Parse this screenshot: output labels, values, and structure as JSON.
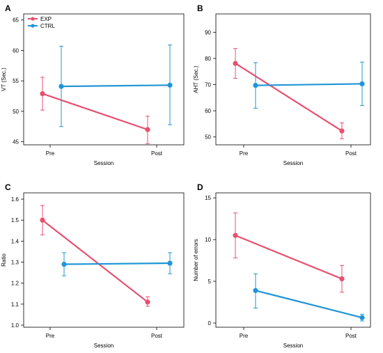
{
  "chart_data": [
    {
      "type": "line",
      "panel_label": "A",
      "categories": [
        "Pre",
        "Post"
      ],
      "xlabel": "Session",
      "ylabel": "VT (Sec.)",
      "ylim": [
        44.5,
        66
      ],
      "yticks": [
        45,
        50,
        55,
        60,
        65
      ],
      "legend": {
        "placement": "top-left",
        "entries": [
          "EXP",
          "CTRL"
        ]
      },
      "series": [
        {
          "name": "EXP",
          "color": "#e8506e",
          "values": [
            52.9,
            47.0
          ],
          "error_low": [
            50.2,
            44.7
          ],
          "error_high": [
            55.6,
            49.2
          ]
        },
        {
          "name": "CTRL",
          "color": "#1f95d6",
          "values": [
            54.1,
            54.3
          ],
          "error_low": [
            47.5,
            47.8
          ],
          "error_high": [
            60.7,
            60.9
          ]
        }
      ]
    },
    {
      "type": "line",
      "panel_label": "B",
      "categories": [
        "Pre",
        "Post"
      ],
      "xlabel": "Session",
      "ylabel": "AHT (Sec.)",
      "ylim": [
        47,
        97
      ],
      "yticks": [
        50,
        60,
        70,
        80,
        90
      ],
      "series": [
        {
          "name": "EXP",
          "color": "#e8506e",
          "values": [
            78.1,
            52.3
          ],
          "error_low": [
            72.4,
            49.3
          ],
          "error_high": [
            83.8,
            55.4
          ]
        },
        {
          "name": "CTRL",
          "color": "#1f95d6",
          "values": [
            69.7,
            70.3
          ],
          "error_low": [
            61.0,
            62.0
          ],
          "error_high": [
            78.4,
            78.6
          ]
        }
      ]
    },
    {
      "type": "line",
      "panel_label": "C",
      "categories": [
        "Pre",
        "Post"
      ],
      "xlabel": "Session",
      "ylabel": "Ratio",
      "ylim": [
        0.99,
        1.63
      ],
      "yticks": [
        1.0,
        1.1,
        1.2,
        1.3,
        1.4,
        1.5,
        1.6
      ],
      "series": [
        {
          "name": "EXP",
          "color": "#e8506e",
          "values": [
            1.5,
            1.11
          ],
          "error_low": [
            1.43,
            1.09
          ],
          "error_high": [
            1.57,
            1.135
          ]
        },
        {
          "name": "CTRL",
          "color": "#1f95d6",
          "values": [
            1.29,
            1.295
          ],
          "error_low": [
            1.235,
            1.245
          ],
          "error_high": [
            1.345,
            1.345
          ]
        }
      ]
    },
    {
      "type": "line",
      "panel_label": "D",
      "categories": [
        "Pre",
        "Post"
      ],
      "xlabel": "Session",
      "ylabel": "Number of errors",
      "ylim": [
        -0.5,
        15.6
      ],
      "yticks": [
        0,
        5,
        10,
        15
      ],
      "series": [
        {
          "name": "EXP",
          "color": "#e8506e",
          "values": [
            10.5,
            5.3
          ],
          "error_low": [
            7.8,
            3.7
          ],
          "error_high": [
            13.2,
            6.9
          ]
        },
        {
          "name": "CTRL",
          "color": "#1f95d6",
          "values": [
            3.9,
            0.65
          ],
          "error_low": [
            1.8,
            0.25
          ],
          "error_high": [
            5.9,
            1.05
          ]
        }
      ]
    }
  ]
}
